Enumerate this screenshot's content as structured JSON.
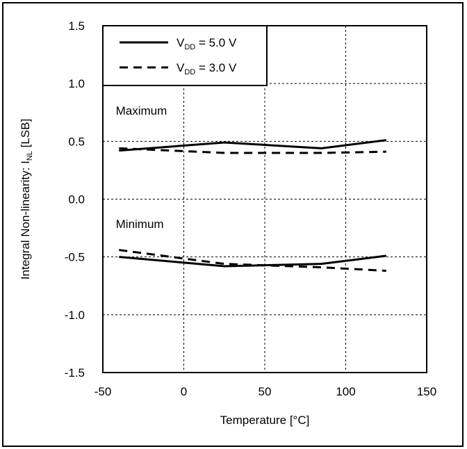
{
  "chart_data": {
    "type": "line",
    "xlabel": "Temperature  [°C]",
    "ylabel": {
      "prefix": "Integral Non-linearity: I",
      "sub": "NL",
      "suffix": " [LSB]"
    },
    "xlim": [
      -50,
      150
    ],
    "ylim": [
      -1.5,
      1.5
    ],
    "xticks": [
      -50,
      0,
      50,
      100,
      150
    ],
    "yticks": [
      -1.5,
      -1.0,
      -0.5,
      0.0,
      0.5,
      1.0,
      1.5
    ],
    "xtick_labels": [
      "-50",
      "0",
      "50",
      "100",
      "150"
    ],
    "ytick_labels": [
      "-1.5",
      "-1.0",
      "-0.5",
      "0.0",
      "0.5",
      "1.0",
      "1.5"
    ],
    "grid": "dashed",
    "legend_position": "top-left",
    "annotations": [
      {
        "text": "Maximum",
        "x": -42,
        "y": 0.73
      },
      {
        "text": "Minimum",
        "x": -42,
        "y": -0.25
      }
    ],
    "series": [
      {
        "name": {
          "prefix": "V",
          "sub": "DD",
          "suffix": " = 5.0 V"
        },
        "style": "solid",
        "group": "max",
        "x": [
          -40,
          25,
          85,
          125
        ],
        "y": [
          0.42,
          0.49,
          0.44,
          0.51
        ]
      },
      {
        "name": {
          "prefix": "V",
          "sub": "DD",
          "suffix": " = 3.0 V"
        },
        "style": "dashed",
        "group": "max",
        "x": [
          -40,
          25,
          85,
          125
        ],
        "y": [
          0.44,
          0.4,
          0.4,
          0.41
        ]
      },
      {
        "name": {
          "prefix": "V",
          "sub": "DD",
          "suffix": " = 5.0 V"
        },
        "style": "solid",
        "group": "min",
        "x": [
          -40,
          25,
          85,
          125
        ],
        "y": [
          -0.5,
          -0.58,
          -0.56,
          -0.49
        ]
      },
      {
        "name": {
          "prefix": "V",
          "sub": "DD",
          "suffix": " = 3.0 V"
        },
        "style": "dashed",
        "group": "min",
        "x": [
          -40,
          25,
          85,
          125
        ],
        "y": [
          -0.44,
          -0.56,
          -0.59,
          -0.62
        ]
      }
    ],
    "colors": {
      "line": "#000000",
      "grid": "#000000",
      "background": "#ffffff"
    }
  }
}
